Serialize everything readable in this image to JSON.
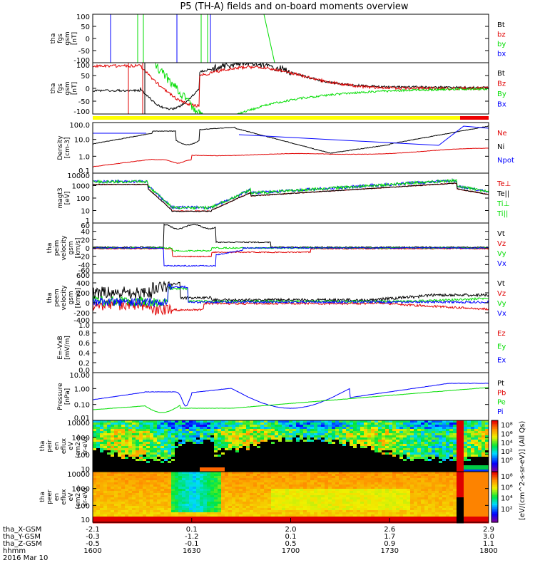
{
  "title": "P5 (TH-A) fields and on-board moments overview",
  "colors": {
    "black": "#000000",
    "red": "#e00000",
    "green": "#00dd00",
    "blue": "#0000ff",
    "yellow": "#ffff00",
    "barRed": "#ee0000"
  },
  "chart_data": [
    {
      "type": "line",
      "panel": "fgs-gsm-1",
      "ylabel": [
        "tha",
        "fgs",
        "gsm",
        "[nT]"
      ],
      "yticks": [
        "100",
        "50",
        "0",
        "-50",
        "-100"
      ],
      "ylim": [
        -100,
        100
      ],
      "legend": [
        {
          "label": "Bt",
          "color": "#000000"
        },
        {
          "label": "bz",
          "color": "#e00000"
        },
        {
          "label": "by",
          "color": "#00dd00"
        },
        {
          "label": "bx",
          "color": "#0000ff"
        }
      ]
    },
    {
      "type": "line",
      "panel": "fgs-gsm-2",
      "ylabel": [
        "tha",
        "fgs",
        "gsm",
        "[nT]"
      ],
      "yticks": [
        "100",
        "50",
        "0",
        "-50",
        "-100"
      ],
      "ylim": [
        -120,
        120
      ],
      "legend": [
        {
          "label": "Bt",
          "color": "#000000"
        },
        {
          "label": "Bz",
          "color": "#e00000"
        },
        {
          "label": "By",
          "color": "#00dd00"
        },
        {
          "label": "Bx",
          "color": "#0000ff"
        }
      ]
    },
    {
      "type": "line",
      "panel": "density",
      "ylabel": [
        "Density",
        "[cm-3]"
      ],
      "yticks": [
        "100.0",
        "10.0",
        "1.0",
        "0.1"
      ],
      "yscale": "log",
      "legend": [
        {
          "label": "Ne",
          "color": "#e00000"
        },
        {
          "label": "Ni",
          "color": "#000000"
        },
        {
          "label": "Npot",
          "color": "#0000ff"
        }
      ]
    },
    {
      "type": "line",
      "panel": "temperature",
      "ylabel": [
        "magt3",
        "[eV]"
      ],
      "yticks": [
        "10000",
        "1000",
        "100",
        "10",
        "1"
      ],
      "yscale": "log",
      "legend": [
        {
          "label": "Te⊥",
          "color": "#e00000"
        },
        {
          "label": "Te||",
          "color": "#000000"
        },
        {
          "label": "Ti⊥",
          "color": "#00dd00"
        },
        {
          "label": "Ti||",
          "color": "#00dd00"
        }
      ]
    },
    {
      "type": "line",
      "panel": "peim-velocity",
      "ylabel": [
        "tha",
        "peim",
        "velocity",
        "gsm",
        "[km/s]"
      ],
      "yticks": [
        "60",
        "40",
        "20",
        "0",
        "-20",
        "-40",
        "-60"
      ],
      "ylim": [
        -60,
        60
      ],
      "legend": [
        {
          "label": "Vt",
          "color": "#000000"
        },
        {
          "label": "Vz",
          "color": "#e00000"
        },
        {
          "label": "Vy",
          "color": "#00dd00"
        },
        {
          "label": "Vx",
          "color": "#0000ff"
        }
      ]
    },
    {
      "type": "line",
      "panel": "peem-velocity",
      "ylabel": [
        "tha",
        "peem",
        "velocity",
        "gsm",
        "[km/s]"
      ],
      "yticks": [
        "600",
        "400",
        "200",
        "0",
        "-200",
        "-400"
      ],
      "ylim": [
        -400,
        600
      ],
      "legend": [
        {
          "label": "Vt",
          "color": "#000000"
        },
        {
          "label": "Vz",
          "color": "#e00000"
        },
        {
          "label": "Vy",
          "color": "#00dd00"
        },
        {
          "label": "Vx",
          "color": "#0000ff"
        }
      ]
    },
    {
      "type": "line",
      "panel": "efield",
      "ylabel": [
        "E=-VxB",
        "[mV/m]"
      ],
      "yticks": [
        "1.0",
        "0.8",
        "0.6",
        "0.4",
        "0.2",
        "0.0"
      ],
      "ylim": [
        0,
        1
      ],
      "legend": [
        {
          "label": "Ez",
          "color": "#e00000"
        },
        {
          "label": "Ey",
          "color": "#00dd00"
        },
        {
          "label": "Ex",
          "color": "#0000ff"
        }
      ]
    },
    {
      "type": "line",
      "panel": "pressure",
      "ylabel": [
        "Pressure",
        "[nPa]"
      ],
      "yticks": [
        "10.00",
        "1.00",
        "0.10",
        "0.01"
      ],
      "yscale": "log",
      "legend": [
        {
          "label": "Pt",
          "color": "#000000"
        },
        {
          "label": "Pb",
          "color": "#e00000"
        },
        {
          "label": "Pe",
          "color": "#00dd00"
        },
        {
          "label": "Pi",
          "color": "#0000ff"
        }
      ]
    },
    {
      "type": "heatmap",
      "panel": "peir-spectrogram",
      "ylabel": [
        "tha",
        "peir",
        "en",
        "eflux",
        "eV",
        "(cm2-s-",
        "sr-eV)"
      ],
      "yticks": [
        "10000",
        "1000",
        "100",
        "10"
      ],
      "yscale": "log",
      "colorbar_ticks": [
        "10⁸",
        "10⁶",
        "10⁴",
        "10²",
        "10⁰"
      ]
    },
    {
      "type": "heatmap",
      "panel": "peer-spectrogram",
      "ylabel": [
        "tha",
        "peer",
        "en",
        "eflux",
        "eV",
        "(cm2-s-",
        "sr-eV)"
      ],
      "yticks": [
        "10000",
        "1000",
        "100",
        "10"
      ],
      "yscale": "log",
      "colorbar_ticks": [
        "10⁸",
        "10⁶",
        "10⁴",
        "10²"
      ]
    }
  ],
  "colorbar_label": "[eV/(cm^2-s-sr-eV)] (All Qs)",
  "footer": {
    "row_labels": [
      "tha_X-GSM",
      "tha_Y-GSM",
      "tha_Z-GSM",
      "hhmm",
      "2016 Mar 10"
    ],
    "columns": [
      [
        "-2.1",
        "-0.3",
        "-0.5",
        "1600"
      ],
      [
        "0.1",
        "-1.2",
        "-0.1",
        "1630"
      ],
      [
        "2.0",
        "0.1",
        "0.5",
        "1700"
      ],
      [
        "2.6",
        "1.7",
        "0.9",
        "1730"
      ],
      [
        "2.9",
        "3.0",
        "1.1",
        "1800"
      ]
    ]
  }
}
